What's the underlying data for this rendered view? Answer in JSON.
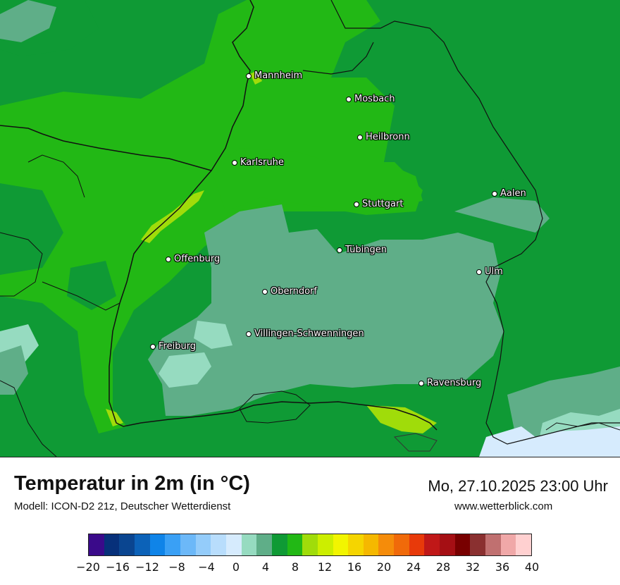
{
  "title": "Temperatur in 2m (in °C)",
  "model": "Modell: ICON-D2 21z, Deutscher Wetterdienst",
  "datetime": "Mo, 27.10.2025 23:00 Uhr",
  "website": "www.wetterblick.com",
  "cities": [
    {
      "name": "Mannheim"
    },
    {
      "name": "Mosbach"
    },
    {
      "name": "Heilbronn"
    },
    {
      "name": "Karlsruhe"
    },
    {
      "name": "Aalen"
    },
    {
      "name": "Stuttgart"
    },
    {
      "name": "Tübingen"
    },
    {
      "name": "Offenburg"
    },
    {
      "name": "Ulm"
    },
    {
      "name": "Oberndorf"
    },
    {
      "name": "Villingen-Schwenningen"
    },
    {
      "name": "Freiburg"
    },
    {
      "name": "Ravensburg"
    }
  ],
  "legend": {
    "colors": [
      "#3a0a8a",
      "#07307a",
      "#0a4590",
      "#0c62b8",
      "#0f84e8",
      "#3aa0f5",
      "#6cb8f8",
      "#94ccfa",
      "#b8ddfc",
      "#d6ebfd",
      "#96dbc0",
      "#5fae88",
      "#0f9a35",
      "#22b815",
      "#a0dc0a",
      "#ccee00",
      "#f2f500",
      "#f5d500",
      "#f5b800",
      "#f58c0a",
      "#f06a0a",
      "#e83a0a",
      "#c01818",
      "#a50f14",
      "#780000",
      "#8a3030",
      "#c07070",
      "#f0a8a8",
      "#ffd0d0"
    ],
    "ticks": [
      "−20",
      "−16",
      "−12",
      "−8",
      "−4",
      "0",
      "4",
      "8",
      "12",
      "16",
      "20",
      "24",
      "28",
      "32",
      "36",
      "40"
    ]
  },
  "colors": {
    "green_dark": "#0f9a35",
    "green_bright": "#22b815",
    "teal": "#5fae88",
    "mint": "#96dbc0",
    "yellow_green": "#a0dc0a",
    "pale_blue": "#d6ebfd"
  }
}
